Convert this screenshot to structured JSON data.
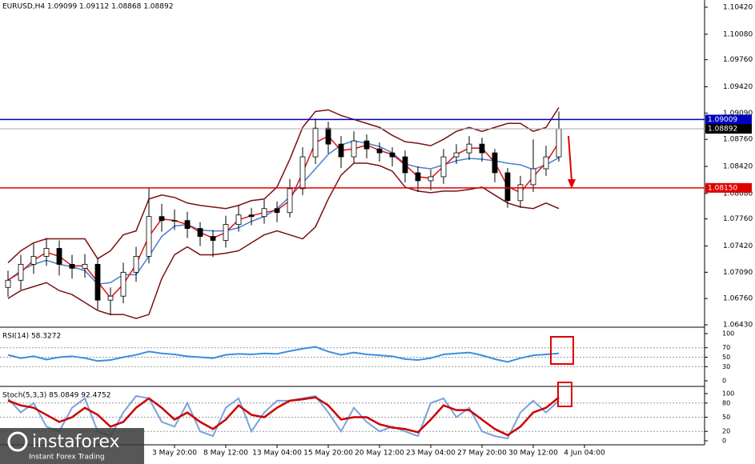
{
  "chart_data": [
    {
      "type": "candlestick",
      "title": "EURUSD,H4  1.09099 1.09112 1.08868 1.08892",
      "categories": [
        null,
        null,
        null,
        null,
        null,
        null,
        null,
        null,
        null,
        null,
        null,
        null,
        null,
        "3 May 20:00",
        null,
        null,
        null,
        "8 May 12:00",
        null,
        null,
        null,
        "13 May 04:00",
        null,
        null,
        null,
        "15 May 20:00",
        null,
        null,
        null,
        "20 May 12:00",
        null,
        null,
        null,
        "23 May 04:00",
        null,
        null,
        null,
        "27 May 20:00",
        null,
        null,
        null,
        "30 May 12:00",
        null,
        null,
        null,
        "4 Jun 04:00"
      ],
      "open": [
        1.069,
        1.0699,
        1.0719,
        1.0729,
        1.0739,
        1.0719,
        1.0714,
        1.0719,
        1.0674,
        1.0679,
        1.0709,
        1.0729,
        1.0779,
        1.0774,
        1.0774,
        1.0764,
        1.0754,
        1.0749,
        1.0769,
        1.0781,
        1.0779,
        1.0789,
        1.0784,
        1.0814,
        1.0854,
        1.089,
        1.087,
        1.0854,
        1.0874,
        1.0864,
        1.0859,
        1.0854,
        1.0834,
        1.0824,
        1.0829,
        1.0854,
        1.0859,
        1.087,
        1.0859,
        1.0834,
        1.0799,
        1.0819,
        1.0839,
        1.0854,
        null,
        null
      ],
      "high": [
        1.0711,
        1.0731,
        1.0745,
        1.0752,
        1.0749,
        1.0731,
        1.0732,
        1.0727,
        1.069,
        1.0721,
        1.0741,
        1.0815,
        1.0795,
        1.0788,
        1.0785,
        1.0772,
        1.0762,
        1.078,
        1.0793,
        1.079,
        1.08,
        1.0798,
        1.0826,
        1.0866,
        1.0902,
        1.0898,
        1.088,
        1.0886,
        1.0882,
        1.0872,
        1.0866,
        1.0862,
        1.0842,
        1.0838,
        1.0864,
        1.087,
        1.088,
        1.0878,
        1.0864,
        1.084,
        1.083,
        1.0876,
        1.0868,
        1.0911,
        null,
        null
      ],
      "low": [
        1.0678,
        1.0687,
        1.0707,
        1.0717,
        1.0705,
        1.0701,
        1.0702,
        1.0662,
        1.0655,
        1.067,
        1.0697,
        1.072,
        1.076,
        1.0762,
        1.0752,
        1.0742,
        1.0728,
        1.074,
        1.076,
        1.0768,
        1.077,
        1.0772,
        1.0778,
        1.0806,
        1.0845,
        1.0858,
        1.084,
        1.0846,
        1.0852,
        1.0848,
        1.0842,
        1.0822,
        1.081,
        1.0812,
        1.082,
        1.0845,
        1.085,
        1.0848,
        1.0822,
        1.079,
        1.079,
        1.081,
        1.083,
        1.0848,
        null,
        null
      ],
      "close": [
        1.0699,
        1.0719,
        1.0729,
        1.0739,
        1.0719,
        1.0714,
        1.0719,
        1.0674,
        1.0679,
        1.0709,
        1.0729,
        1.0779,
        1.0774,
        1.0774,
        1.0764,
        1.0754,
        1.0749,
        1.0769,
        1.0781,
        1.0779,
        1.0789,
        1.0784,
        1.0814,
        1.0854,
        1.089,
        1.087,
        1.0854,
        1.0874,
        1.0864,
        1.0859,
        1.0854,
        1.0834,
        1.0824,
        1.0829,
        1.0854,
        1.0859,
        1.087,
        1.0859,
        1.0834,
        1.0799,
        1.0819,
        1.0839,
        1.0854,
        1.0889,
        null,
        null
      ],
      "series": [
        {
          "color": "#7a1010",
          "values": [
            1.0721,
            1.0736,
            1.0746,
            1.0751,
            1.0751,
            1.0751,
            1.0751,
            1.0726,
            1.0736,
            1.0756,
            1.0761,
            1.0801,
            1.0806,
            1.0803,
            1.0796,
            1.0793,
            1.0791,
            1.0789,
            1.0793,
            1.0799,
            1.0801,
            1.0816,
            1.0851,
            1.0891,
            1.0911,
            1.0913,
            1.0906,
            1.0901,
            1.0896,
            1.0891,
            1.0881,
            1.0873,
            1.0871,
            1.0868,
            1.0876,
            1.0886,
            1.0891,
            1.0886,
            1.0891,
            1.0896,
            1.0896,
            1.0886,
            1.0891,
            1.0916,
            null,
            null
          ]
        },
        {
          "color": "#7a1010",
          "values": [
            1.0676,
            1.0686,
            1.0691,
            1.0696,
            1.0686,
            1.0681,
            1.0671,
            1.0661,
            1.0656,
            1.0656,
            1.0651,
            1.0656,
            1.0701,
            1.0731,
            1.0741,
            1.0731,
            1.0731,
            1.0733,
            1.0736,
            1.0746,
            1.0756,
            1.0761,
            1.0756,
            1.0751,
            1.0766,
            1.0801,
            1.0831,
            1.0846,
            1.0846,
            1.0843,
            1.0836,
            1.0816,
            1.0811,
            1.0809,
            1.0811,
            1.0811,
            1.0813,
            1.0816,
            1.0806,
            1.0796,
            1.0791,
            1.0789,
            1.0796,
            1.0789,
            null,
            null
          ]
        },
        {
          "color": "#4a7fd0",
          "values": [
            1.0699,
            1.0711,
            1.0719,
            1.0724,
            1.0719,
            1.0716,
            1.0711,
            1.0694,
            1.0696,
            1.0706,
            1.0706,
            1.0729,
            1.0754,
            1.0767,
            1.0769,
            1.0762,
            1.0761,
            1.0761,
            1.0765,
            1.0773,
            1.0779,
            1.0789,
            1.0804,
            1.0821,
            1.0839,
            1.0857,
            1.0869,
            1.0874,
            1.0871,
            1.0867,
            1.0859,
            1.0845,
            1.0841,
            1.0839,
            1.0844,
            1.0849,
            1.0852,
            1.0851,
            1.0849,
            1.0846,
            1.0844,
            1.0838,
            1.0844,
            1.0853,
            null,
            null
          ]
        },
        {
          "color": "#e01010",
          "values": [
            1.0699,
            1.0709,
            1.0724,
            1.0734,
            1.0729,
            1.0717,
            1.0717,
            1.0697,
            1.0677,
            1.0694,
            1.0719,
            1.0754,
            1.0776,
            1.0774,
            1.0769,
            1.0759,
            1.0752,
            1.0759,
            1.0775,
            1.078,
            1.0784,
            1.0787,
            1.0799,
            1.0834,
            1.0872,
            1.088,
            1.0862,
            1.0864,
            1.0869,
            1.0862,
            1.0857,
            1.0844,
            1.0829,
            1.0827,
            1.0842,
            1.0857,
            1.0865,
            1.0865,
            1.0847,
            1.0817,
            1.0809,
            1.0829,
            1.0847,
            1.0872,
            null,
            null
          ]
        }
      ],
      "hlines": [
        {
          "value": 1.09009,
          "color": "#0000c0"
        },
        {
          "value": 1.0815,
          "label": "1.08150",
          "color": "#e00000"
        }
      ],
      "last_price": 1.08892,
      "ylim": [
        1.0641,
        1.1047
      ],
      "yticks": [
        {
          "value": 1.1042,
          "label": "1.10420"
        },
        {
          "value": 1.1008,
          "label": "1.10080"
        },
        {
          "value": 1.0976,
          "label": "1.09760"
        },
        {
          "value": 1.0942,
          "label": "1.09420"
        },
        {
          "value": 1.0909,
          "label": "1.09090"
        },
        {
          "value": 1.0876,
          "label": "1.08760"
        },
        {
          "value": 1.0842,
          "label": "1.08420"
        },
        {
          "value": 1.0808,
          "label": "1.08080"
        },
        {
          "value": 1.0776,
          "label": "1.07760"
        },
        {
          "value": 1.0742,
          "label": "1.07420"
        },
        {
          "value": 1.0709,
          "label": "1.07090"
        },
        {
          "value": 1.0676,
          "label": "1.06760"
        },
        {
          "value": 1.0643,
          "label": "1.06430"
        }
      ]
    },
    {
      "type": "line",
      "title": "RSI(14) 58.3272",
      "series": [
        {
          "color": "#3a8ee0",
          "values": [
            55,
            48,
            52,
            45,
            50,
            52,
            48,
            42,
            44,
            50,
            55,
            62,
            58,
            56,
            52,
            50,
            48,
            55,
            57,
            56,
            58,
            57,
            63,
            68,
            72,
            62,
            55,
            60,
            56,
            54,
            52,
            46,
            44,
            48,
            56,
            58,
            60,
            54,
            46,
            40,
            48,
            54,
            56,
            58,
            null,
            null
          ]
        }
      ],
      "ylim": [
        0,
        100
      ],
      "yticks": [
        100,
        70,
        50,
        30,
        0
      ]
    },
    {
      "type": "line",
      "title": "Stoch(5,3,3) 85.0849 92.4752",
      "series": [
        {
          "color": "#7aa2dd",
          "values": [
            90,
            60,
            80,
            30,
            20,
            70,
            90,
            20,
            10,
            60,
            95,
            90,
            40,
            30,
            80,
            20,
            10,
            70,
            90,
            20,
            60,
            85,
            85,
            90,
            95,
            60,
            20,
            70,
            40,
            20,
            30,
            20,
            10,
            80,
            90,
            50,
            70,
            20,
            10,
            5,
            60,
            85,
            60,
            85,
            null,
            null
          ]
        },
        {
          "color": "#cc0000",
          "values": [
            85,
            75,
            70,
            55,
            40,
            50,
            70,
            55,
            30,
            40,
            70,
            90,
            70,
            45,
            60,
            40,
            25,
            45,
            75,
            55,
            50,
            70,
            85,
            88,
            92,
            75,
            45,
            50,
            50,
            35,
            28,
            25,
            18,
            45,
            75,
            65,
            65,
            45,
            25,
            12,
            30,
            60,
            70,
            92,
            null,
            null
          ]
        }
      ],
      "ylim": [
        0,
        100
      ],
      "yticks": [
        100,
        80,
        50,
        20,
        0
      ]
    }
  ],
  "watermark": {
    "brand": "instaforex",
    "tagline": "Instant Forex Trading"
  }
}
